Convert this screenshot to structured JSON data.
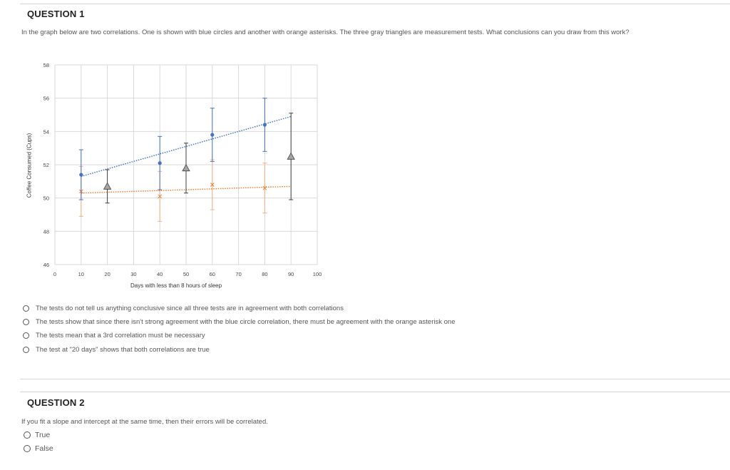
{
  "question1": {
    "title": "QUESTION 1",
    "prompt": "In the graph below are two correlations. One is shown with blue circles and another with orange asterisks. The three gray triangles are measurement tests. What conclusions can you draw from this work?",
    "options": [
      "The tests do not tell us anything conclusive since all three tests are  in agreement with both correlations",
      "The tests show that since there isn't strong agreement with the blue circle correlation, there must be agreement with the orange asterisk one",
      "The tests mean that a 3rd correlation must be necessary",
      "The test at \"20 days\" shows that both correlations are true"
    ]
  },
  "question2": {
    "title": "QUESTION 2",
    "prompt": "If you fit a slope and intercept at the same time, then their errors will be correlated.",
    "options": [
      "True",
      "False"
    ]
  },
  "colors": {
    "blue": "#4472c4",
    "orange": "#ed7d31",
    "gray": "#a6a6a6",
    "grid": "#d9d9d9",
    "errbar_gray": "#404040"
  },
  "chart_data": {
    "type": "scatter",
    "xlabel": "Days with less than 8 hours of sleep",
    "ylabel": "Coffee Consumed (Cups)",
    "xlim": [
      0,
      100
    ],
    "ylim": [
      46,
      58
    ],
    "x_ticks": [
      0,
      10,
      20,
      30,
      40,
      50,
      60,
      70,
      80,
      90,
      100
    ],
    "y_ticks": [
      46,
      48,
      50,
      52,
      54,
      56,
      58
    ],
    "grid": true,
    "series": [
      {
        "marker": "circle",
        "color": "#4472c4",
        "points": [
          {
            "x": 10,
            "y": 51.4,
            "err": 1.5
          },
          {
            "x": 40,
            "y": 52.1,
            "err": 1.6
          },
          {
            "x": 60,
            "y": 53.8,
            "err": 1.6
          },
          {
            "x": 80,
            "y": 54.4,
            "err": 1.6
          }
        ],
        "trendline": {
          "x0": 10,
          "y0": 51.3,
          "x1": 90,
          "y1": 54.9
        }
      },
      {
        "marker": "asterisk",
        "color": "#ed7d31",
        "points": [
          {
            "x": 10,
            "y": 50.4,
            "err": 1.5
          },
          {
            "x": 40,
            "y": 50.1,
            "err": 1.5
          },
          {
            "x": 60,
            "y": 50.8,
            "err": 1.5
          },
          {
            "x": 80,
            "y": 50.6,
            "err": 1.5
          }
        ],
        "trendline": {
          "x0": 10,
          "y0": 50.3,
          "x1": 90,
          "y1": 50.7
        }
      },
      {
        "marker": "triangle",
        "color": "#a6a6a6",
        "points": [
          {
            "x": 20,
            "y": 50.7,
            "err": 1.0
          },
          {
            "x": 50,
            "y": 51.8,
            "err": 1.5
          },
          {
            "x": 90,
            "y": 52.5,
            "err": 2.6
          }
        ]
      }
    ]
  }
}
